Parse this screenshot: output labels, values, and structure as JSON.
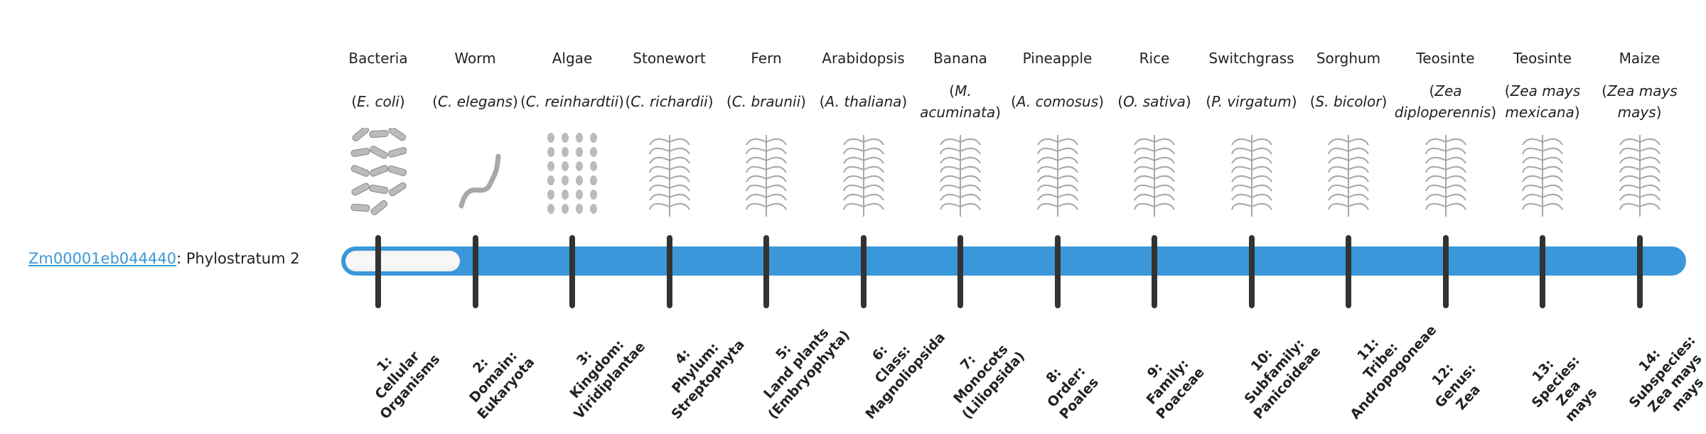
{
  "gene": {
    "id": "Zm00001eb044440",
    "suffix": ": Phylostratum 2"
  },
  "progress": {
    "phylostratum": 2,
    "total": 14,
    "accent": "#3a97d9"
  },
  "columns": [
    {
      "common": "Bacteria",
      "latin": "E. coli",
      "icon": "bacteria-illustration",
      "rank": [
        "1:",
        "Cellular",
        "Organisms"
      ]
    },
    {
      "common": "Worm",
      "latin": "C. elegans",
      "icon": "worm-illustration",
      "rank": [
        "2:",
        "Domain:",
        "Eukaryota"
      ]
    },
    {
      "common": "Algae",
      "latin": "C. reinhardtii",
      "icon": "algae-illustration",
      "rank": [
        "3:",
        "Kingdom:",
        "Viridiplantae"
      ]
    },
    {
      "common": "Stonewort",
      "latin": "C. richardii",
      "icon": "stonewort-illustration",
      "rank": [
        "4:",
        "Phylum:",
        "Streptophyta"
      ]
    },
    {
      "common": "Fern",
      "latin": "C. braunii",
      "icon": "fern-illustration",
      "rank": [
        "5:",
        "Land plants",
        "(Embryophyta)"
      ]
    },
    {
      "common": "Arabidopsis",
      "latin": "A. thaliana",
      "icon": "arabidopsis-illustration",
      "rank": [
        "6:",
        "Class:",
        "Magnoliopsida"
      ]
    },
    {
      "common": "Banana",
      "latin": "M. acuminata",
      "icon": "banana-illustration",
      "rank": [
        "7:",
        "Monocots",
        "(Liliopsida)"
      ]
    },
    {
      "common": "Pineapple",
      "latin": "A. comosus",
      "icon": "pineapple-illustration",
      "rank": [
        "8:",
        "Order:",
        "Poales"
      ]
    },
    {
      "common": "Rice",
      "latin": "O. sativa",
      "icon": "rice-illustration",
      "rank": [
        "9:",
        "Family:",
        "Poaceae"
      ]
    },
    {
      "common": "Switchgrass",
      "latin": "P. virgatum",
      "icon": "switchgrass-illustration",
      "rank": [
        "10:",
        "Subfamily:",
        "Panicoideae"
      ]
    },
    {
      "common": "Sorghum",
      "latin": "S. bicolor",
      "icon": "sorghum-illustration",
      "rank": [
        "11:",
        "Tribe:",
        "Andropogoneae"
      ]
    },
    {
      "common": "Teosinte",
      "latin": "Zea diploperennis",
      "icon": "teosinte-illustration",
      "rank": [
        "12:",
        "Genus:",
        "Zea"
      ]
    },
    {
      "common": "Teosinte",
      "latin": "Zea mays mexicana",
      "icon": "teosinte-mexicana-illustration",
      "rank": [
        "13:",
        "Species:",
        "Zea",
        "mays"
      ]
    },
    {
      "common": "Maize",
      "latin": "Zea mays mays",
      "icon": "maize-illustration",
      "rank": [
        "14:",
        "Subspecies:",
        "Zea mays",
        "mays"
      ]
    }
  ]
}
